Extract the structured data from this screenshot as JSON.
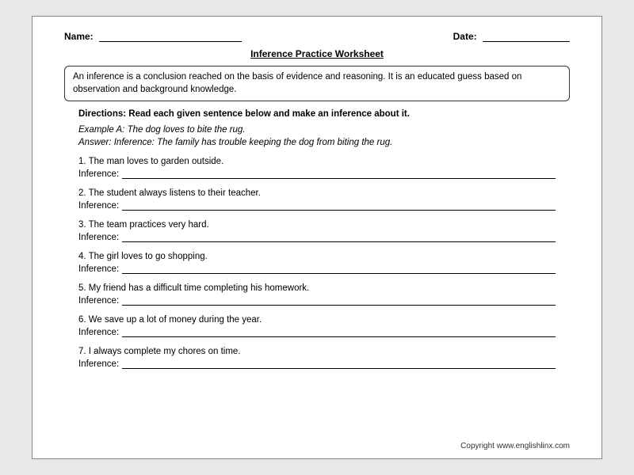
{
  "header": {
    "name_label": "Name:",
    "date_label": "Date:"
  },
  "title": "Inference Practice Worksheet",
  "definition": "An inference is a conclusion reached on the basis of evidence and reasoning. It is an educated guess based on observation and background knowledge.",
  "directions": "Directions: Read each given sentence below and make an inference about it.",
  "example_sentence": "Example A: The dog loves to bite the rug.",
  "example_answer": "Answer: Inference: The family has trouble keeping the dog from biting the rug.",
  "inference_label": "Inference:",
  "items": [
    "1. The man loves to garden outside.",
    "2. The student always listens to their teacher.",
    "3. The team practices very hard.",
    "4. The girl loves to go shopping.",
    "5. My friend has a difficult time completing his homework.",
    "6. We save up a lot of money during the year.",
    "7. I always complete my chores on time."
  ],
  "copyright": "Copyright www.englishlinx.com",
  "colors": {
    "page_bg": "#ffffff",
    "outer_bg": "#e8e8e8",
    "border": "#888888",
    "text": "#000000"
  }
}
